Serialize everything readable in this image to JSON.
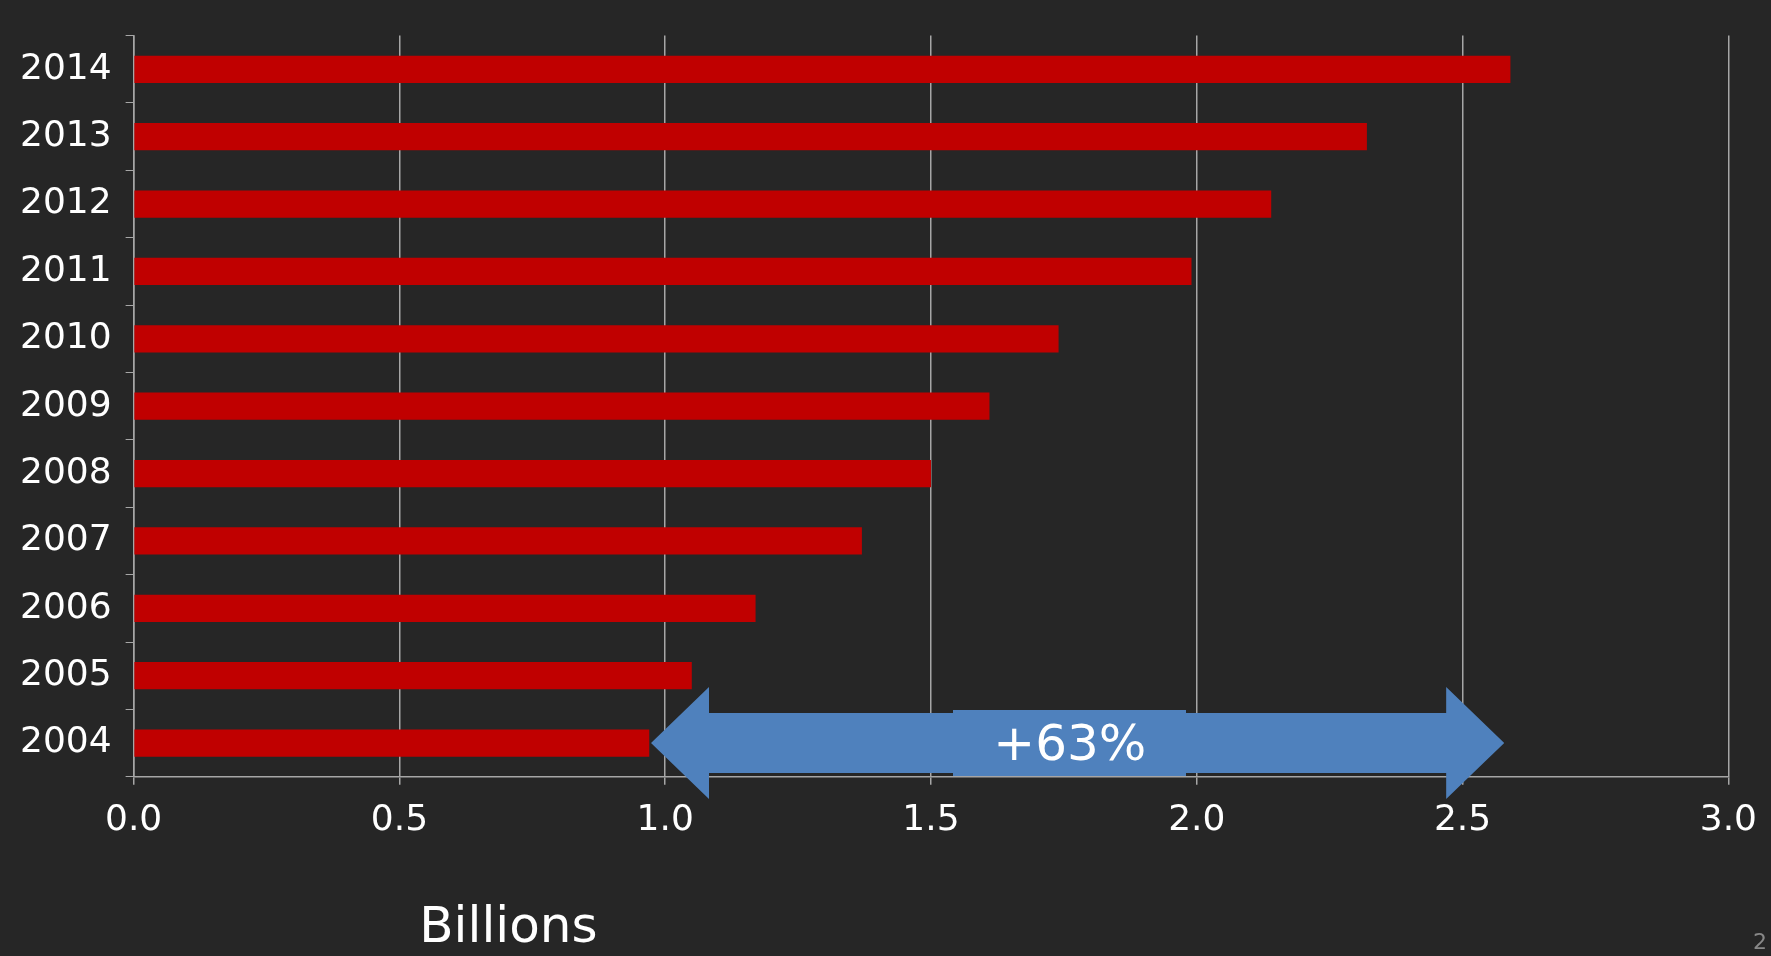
{
  "chart_data": {
    "type": "bar",
    "orientation": "horizontal",
    "xlabel": "Billions",
    "categories": [
      "2014",
      "2013",
      "2012",
      "2011",
      "2010",
      "2009",
      "2008",
      "2007",
      "2006",
      "2005",
      "2004"
    ],
    "values": [
      2.59,
      2.32,
      2.14,
      1.99,
      1.74,
      1.61,
      1.5,
      1.37,
      1.17,
      1.05,
      0.97
    ],
    "color": "#c00000",
    "xlim": [
      0,
      3
    ],
    "xticks": [
      {
        "value": 0,
        "label": "0.0"
      },
      {
        "value": 0.5,
        "label": "0.5"
      },
      {
        "value": 1,
        "label": "1.0"
      },
      {
        "value": 1.5,
        "label": "1.5"
      },
      {
        "value": 2,
        "label": "2.0"
      },
      {
        "value": 2.5,
        "label": "2.5"
      },
      {
        "value": 3,
        "label": "3.0"
      }
    ],
    "grid": "x",
    "legend": false,
    "annotations": [
      "+63%",
      "2"
    ]
  }
}
